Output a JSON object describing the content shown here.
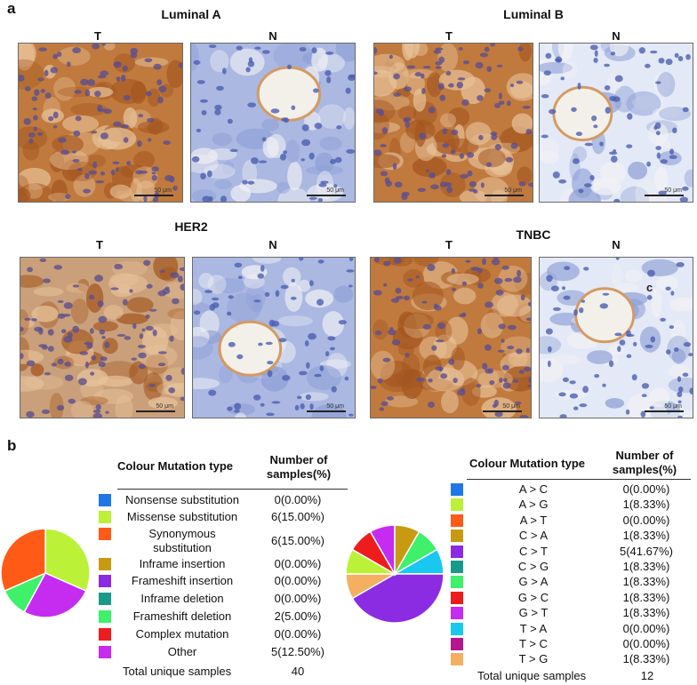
{
  "panel_a": {
    "letter": "a",
    "scale_label": "50 μm",
    "groups": [
      {
        "title": "Luminal A",
        "tumor_label": "T",
        "normal_label": "N"
      },
      {
        "title": "Luminal B",
        "tumor_label": "T",
        "normal_label": "N"
      },
      {
        "title": "HER2",
        "tumor_label": "T",
        "normal_label": "N"
      },
      {
        "title": "TNBC",
        "tumor_label": "T",
        "normal_label": "N",
        "normal_marker": "c"
      }
    ]
  },
  "panel_b": {
    "letter": "b",
    "left_table": {
      "header_col1": "Colour Mutation type",
      "header_col2_line1": "Number of",
      "header_col2_line2": "samples(%)",
      "rows": [
        {
          "label": "Nonsense substitution",
          "value": "0(0.00%)",
          "color": "#1f77e8"
        },
        {
          "label": "Missense substitution",
          "value": "6(15.00%)",
          "color": "#bbf238"
        },
        {
          "label": "Synonymous",
          "label2": "substitution",
          "value": "6(15.00%)",
          "color": "#ff5a16"
        },
        {
          "label": "Inframe insertion",
          "value": "0(0.00%)",
          "color": "#c79a12"
        },
        {
          "label": "Frameshift insertion",
          "value": "0(0.00%)",
          "color": "#8b2be2"
        },
        {
          "label": "Inframe deletion",
          "value": "0(0.00%)",
          "color": "#189a8a"
        },
        {
          "label": "Frameshift deletion",
          "value": "2(5.00%)",
          "color": "#3ef06a"
        },
        {
          "label": "Complex mutation",
          "value": "0(0.00%)",
          "color": "#ee1c1c"
        },
        {
          "label": "Other",
          "value": "5(12.50%)",
          "color": "#c62cf0"
        }
      ],
      "total_label": "Total unique samples",
      "total_value": "40"
    },
    "right_table": {
      "header_col1": "Colour Mutation type",
      "header_col2_line1": "Number of",
      "header_col2_line2": "samples(%)",
      "rows": [
        {
          "label": "A > C",
          "value": "0(0.00%)",
          "color": "#1f77e8"
        },
        {
          "label": "A > G",
          "value": "1(8.33%)",
          "color": "#bbf238"
        },
        {
          "label": "A > T",
          "value": "0(0.00%)",
          "color": "#ff5a16"
        },
        {
          "label": "C > A",
          "value": "1(8.33%)",
          "color": "#c79a12"
        },
        {
          "label": "C > T",
          "value": "5(41.67%)",
          "color": "#8b2be2"
        },
        {
          "label": "C > G",
          "value": "1(8.33%)",
          "color": "#189a8a"
        },
        {
          "label": "G > A",
          "value": "1(8.33%)",
          "color": "#3ef06a"
        },
        {
          "label": "G > C",
          "value": "1(8.33%)",
          "color": "#ee1c1c"
        },
        {
          "label": "G > T",
          "value": "1(8.33%)",
          "color": "#c62cf0"
        },
        {
          "label": "T > A",
          "value": "0(0.00%)",
          "color": "#18c8f0"
        },
        {
          "label": "T > C",
          "value": "0(0.00%)",
          "color": "#b3168f"
        },
        {
          "label": "T > G",
          "value": "1(8.33%)",
          "color": "#f4b060"
        }
      ],
      "total_label": "Total unique samples",
      "total_value": "12"
    }
  },
  "chart_data": [
    {
      "type": "pie",
      "categories": [
        "Missense substitution",
        "Other",
        "Frameshift deletion",
        "Synonymous substitution"
      ],
      "values": [
        6,
        5,
        2,
        6
      ],
      "colors": [
        "#bbf238",
        "#c62cf0",
        "#3ef06a",
        "#ff5a16"
      ]
    },
    {
      "type": "pie",
      "categories": [
        "G > A",
        "T > G",
        "C > T",
        "G > C",
        "A > G",
        "G > T",
        "C > A",
        "C > G"
      ],
      "values": [
        1,
        1,
        5,
        1,
        1,
        1,
        1,
        1
      ],
      "colors": [
        "#3ef06a",
        "#18c8f0",
        "#8b2be2",
        "#f4b060",
        "#bbf238",
        "#ee1c1c",
        "#c62cf0",
        "#c79a12"
      ]
    }
  ]
}
